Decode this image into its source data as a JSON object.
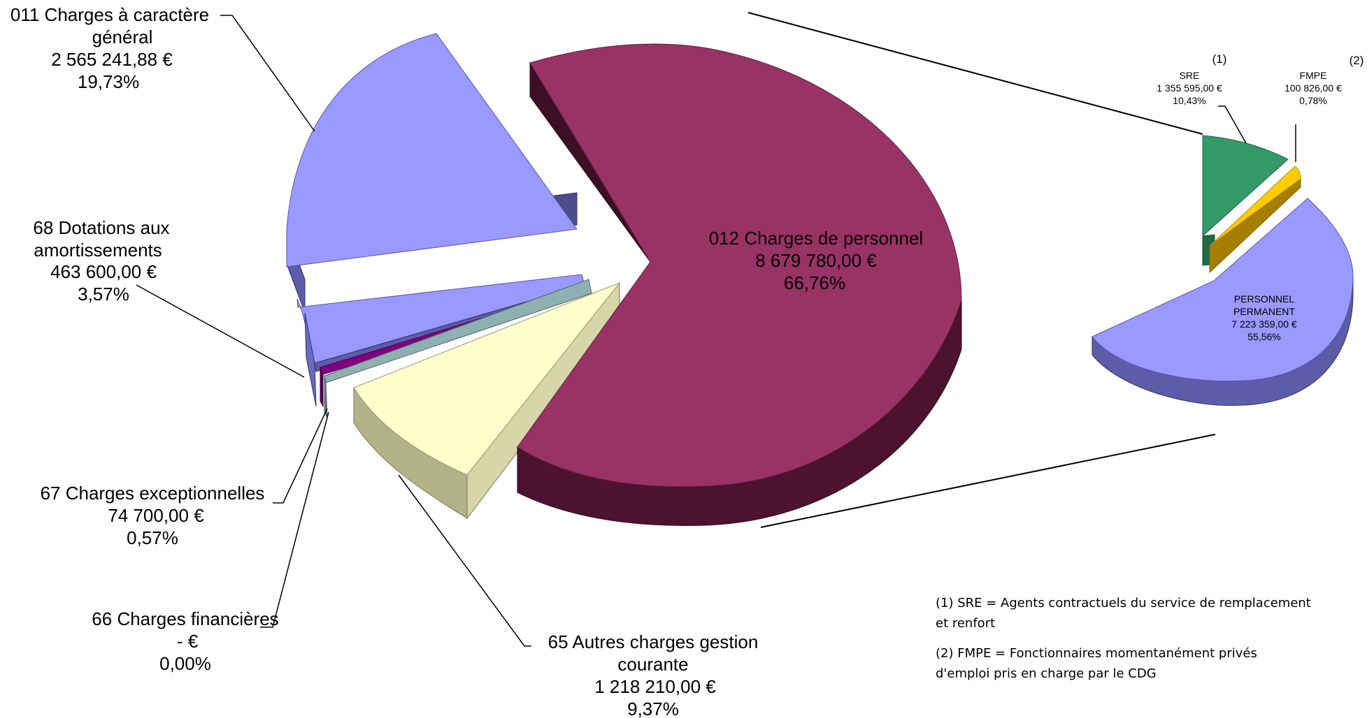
{
  "chart_data": [
    {
      "type": "pie",
      "slices": [
        {
          "name": "012 Charges de personnel",
          "amount": "8 679 780,00 €",
          "value": 8679780.0,
          "percent": "66,76%",
          "color": "#993366"
        },
        {
          "name": "011 Charges à caractère général",
          "amount": "2 565 241,88 €",
          "value": 2565241.88,
          "percent": "19,73%",
          "color": "#9999ff"
        },
        {
          "name": "68 Dotations aux amortissements",
          "amount": "463 600,00 €",
          "value": 463600.0,
          "percent": "3,57%",
          "color": "#9999ff"
        },
        {
          "name": "67 Charges exceptionnelles",
          "amount": "74 700,00 €",
          "value": 74700.0,
          "percent": "0,57%",
          "color": "#800080"
        },
        {
          "name": "66 Charges financières",
          "amount": "-   €",
          "value": 0,
          "percent": "0,00%",
          "color": "#8fb0b0"
        },
        {
          "name": "65 Autres charges gestion courante",
          "amount": "1 218 210,00 €",
          "value": 1218210.0,
          "percent": "9,37%",
          "color": "#ffffcc"
        }
      ]
    },
    {
      "type": "pie",
      "slices": [
        {
          "name": "PERSONNEL PERMANENT",
          "amount": "7 223 359,00 €",
          "value": 7223359.0,
          "percent": "55,56%",
          "color": "#9999ff"
        },
        {
          "name": "SRE",
          "amount": "1 355 595,00 €",
          "value": 1355595.0,
          "percent": "10,43%",
          "color": "#339966",
          "marker": "(1)"
        },
        {
          "name": "FMPE",
          "amount": "100 826,00 €",
          "value": 100826.0,
          "percent": "0,78%",
          "color": "#ffcc00",
          "marker": "(2)"
        }
      ]
    }
  ],
  "labels": {
    "c011": [
      "011 Charges à caractère",
      "général",
      "2 565 241,88 €",
      "19,73%"
    ],
    "c68": [
      "68 Dotations aux",
      "amortissements",
      "463 600,00 €",
      "3,57%"
    ],
    "c67": [
      "67 Charges exceptionnelles",
      "74 700,00 €",
      "0,57%"
    ],
    "c66": [
      "66 Charges financières",
      "-   €",
      "0,00%"
    ],
    "c65": [
      "65 Autres charges gestion",
      "courante",
      "1 218 210,00 €",
      "9,37%"
    ],
    "c012": [
      "012 Charges de personnel",
      "8 679 780,00 €",
      "66,76%"
    ],
    "sre": [
      "SRE",
      "1 355 595,00 €",
      "10,43%"
    ],
    "sre_marker": "(1)",
    "fmpe": [
      "FMPE",
      "100 826,00 €",
      "0,78%"
    ],
    "fmpe_marker": "(2)",
    "perm": [
      "PERSONNEL",
      "PERMANENT",
      "7 223 359,00 €",
      "55,56%"
    ]
  },
  "notes": [
    "(1) SRE = Agents contractuels du service de remplacement",
    "et renfort",
    "(2) FMPE = Fonctionnaires momentanément privés",
    "d'emploi pris en charge par le CDG"
  ]
}
